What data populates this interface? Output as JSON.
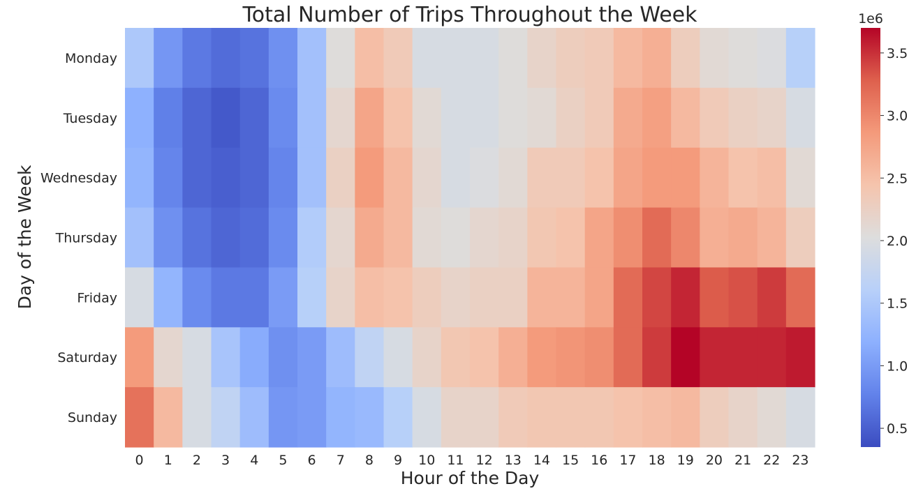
{
  "chart_data": {
    "type": "heatmap",
    "title": "Total Number of Trips Throughout the Week",
    "xlabel": "Hour of the Day",
    "ylabel": "Day of the Week",
    "x": [
      "0",
      "1",
      "2",
      "3",
      "4",
      "5",
      "6",
      "7",
      "8",
      "9",
      "10",
      "11",
      "12",
      "13",
      "14",
      "15",
      "16",
      "17",
      "18",
      "19",
      "20",
      "21",
      "22",
      "23"
    ],
    "y": [
      "Monday",
      "Tuesday",
      "Wednesday",
      "Thursday",
      "Friday",
      "Saturday",
      "Sunday"
    ],
    "values": [
      [
        1.5,
        0.95,
        0.7,
        0.6,
        0.65,
        0.9,
        1.4,
        2.05,
        2.5,
        2.35,
        1.95,
        1.95,
        1.95,
        2.05,
        2.2,
        2.3,
        2.35,
        2.55,
        2.65,
        2.3,
        2.1,
        2.05,
        2.0,
        1.6
      ],
      [
        1.2,
        0.75,
        0.55,
        0.45,
        0.55,
        0.85,
        1.4,
        2.15,
        2.75,
        2.45,
        2.1,
        1.95,
        1.95,
        2.05,
        2.1,
        2.25,
        2.35,
        2.7,
        2.8,
        2.55,
        2.35,
        2.25,
        2.2,
        1.95
      ],
      [
        1.25,
        0.8,
        0.55,
        0.5,
        0.55,
        0.8,
        1.4,
        2.25,
        2.85,
        2.55,
        2.15,
        1.95,
        2.0,
        2.1,
        2.35,
        2.35,
        2.45,
        2.75,
        2.85,
        2.85,
        2.6,
        2.45,
        2.5,
        2.1
      ],
      [
        1.4,
        0.9,
        0.65,
        0.55,
        0.6,
        0.85,
        1.55,
        2.15,
        2.7,
        2.55,
        2.1,
        2.05,
        2.15,
        2.2,
        2.4,
        2.45,
        2.75,
        2.95,
        3.2,
        3.0,
        2.65,
        2.7,
        2.6,
        2.3
      ],
      [
        1.95,
        1.25,
        0.85,
        0.7,
        0.7,
        1.0,
        1.6,
        2.2,
        2.5,
        2.45,
        2.3,
        2.2,
        2.25,
        2.25,
        2.6,
        2.6,
        2.75,
        3.2,
        3.4,
        3.55,
        3.3,
        3.35,
        3.45,
        3.2
      ],
      [
        2.85,
        2.15,
        1.95,
        1.45,
        1.15,
        0.9,
        1.0,
        1.35,
        1.7,
        1.95,
        2.2,
        2.4,
        2.45,
        2.65,
        2.85,
        2.9,
        2.95,
        3.2,
        3.45,
        3.7,
        3.55,
        3.55,
        3.55,
        3.6
      ],
      [
        3.15,
        2.55,
        1.95,
        1.7,
        1.35,
        0.95,
        1.0,
        1.25,
        1.3,
        1.6,
        1.95,
        2.2,
        2.2,
        2.35,
        2.4,
        2.4,
        2.4,
        2.45,
        2.5,
        2.55,
        2.3,
        2.2,
        2.1,
        1.95
      ]
    ],
    "value_unit_multiplier": "1e6",
    "colormap": "coolwarm",
    "colorbar": {
      "range": [
        0.35,
        3.7
      ],
      "ticks": [
        "0.5",
        "1.0",
        "1.5",
        "2.0",
        "2.5",
        "3.0",
        "3.5"
      ],
      "tick_values": [
        0.5,
        1.0,
        1.5,
        2.0,
        2.5,
        3.0,
        3.5
      ],
      "offset_label": "1e6",
      "position": "right"
    },
    "grid": false
  }
}
